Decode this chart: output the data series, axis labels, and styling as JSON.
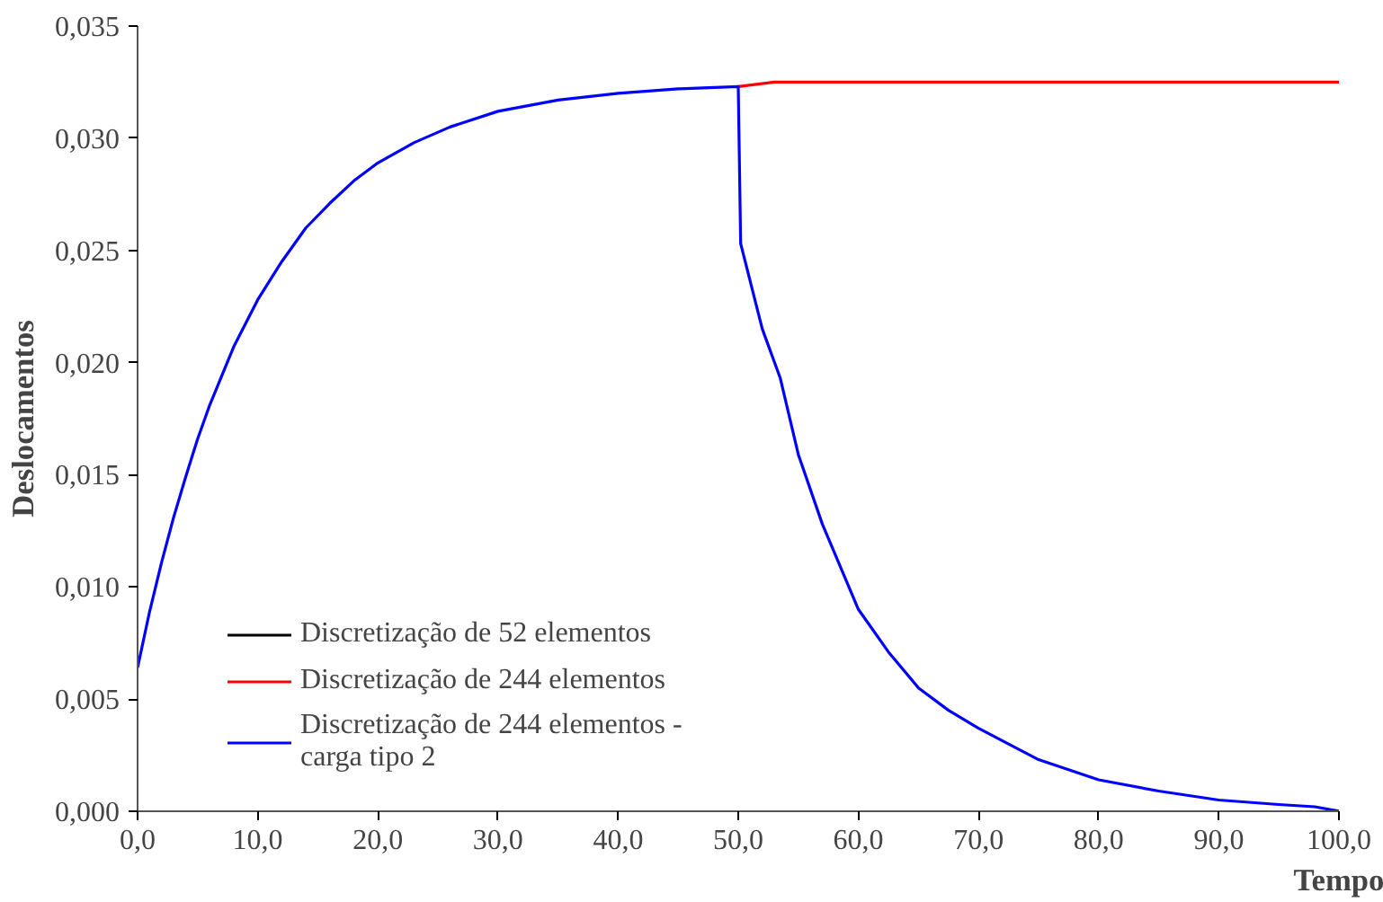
{
  "chart_data": {
    "type": "line",
    "xlabel": "Tempo",
    "ylabel": "Deslocamentos",
    "xlim": [
      0,
      100
    ],
    "ylim": [
      0,
      0.035
    ],
    "xticks": [
      {
        "value": 0,
        "label": "0,0"
      },
      {
        "value": 10,
        "label": "10,0"
      },
      {
        "value": 20,
        "label": "20,0"
      },
      {
        "value": 30,
        "label": "30,0"
      },
      {
        "value": 40,
        "label": "40,0"
      },
      {
        "value": 50,
        "label": "50,0"
      },
      {
        "value": 60,
        "label": "60,0"
      },
      {
        "value": 70,
        "label": "70,0"
      },
      {
        "value": 80,
        "label": "80,0"
      },
      {
        "value": 90,
        "label": "90,0"
      },
      {
        "value": 100,
        "label": "100,0"
      }
    ],
    "yticks": [
      {
        "value": 0,
        "label": "0,000"
      },
      {
        "value": 0.005,
        "label": "0,005"
      },
      {
        "value": 0.01,
        "label": "0,010"
      },
      {
        "value": 0.015,
        "label": "0,015"
      },
      {
        "value": 0.02,
        "label": "0,020"
      },
      {
        "value": 0.025,
        "label": "0,025"
      },
      {
        "value": 0.03,
        "label": "0,030"
      },
      {
        "value": 0.035,
        "label": "0,035"
      }
    ],
    "grid": false,
    "legend": "bottom left",
    "marker": "none",
    "line_style": "solid",
    "series": [
      {
        "name": "Discretização de 52 elementos",
        "color": "#000000"
      },
      {
        "name": "Discretização de 244 elementos",
        "color": "#ff0000",
        "x": [
          50,
          53,
          100
        ],
        "values": [
          0.0323,
          0.0325,
          0.0325
        ]
      },
      {
        "name": "Discretização de 244 elementos -\ncarga tipo 2",
        "color": "#0000ff",
        "x": [
          0,
          1,
          2,
          3,
          4,
          5,
          6,
          8,
          10,
          12,
          14,
          16,
          18,
          20,
          23,
          26,
          30,
          35,
          40,
          45,
          50,
          50.2,
          52,
          53.5,
          55,
          57,
          60,
          62.5,
          65,
          67.5,
          70,
          75,
          80,
          85,
          90,
          95,
          98,
          100
        ],
        "values": [
          0.0064,
          0.0089,
          0.0111,
          0.0131,
          0.0149,
          0.0166,
          0.0181,
          0.0207,
          0.0228,
          0.0245,
          0.026,
          0.0271,
          0.0281,
          0.0289,
          0.0298,
          0.0305,
          0.0312,
          0.0317,
          0.032,
          0.0322,
          0.0323,
          0.0253,
          0.0215,
          0.0193,
          0.0159,
          0.0128,
          0.009,
          0.0071,
          0.0055,
          0.0045,
          0.0037,
          0.0023,
          0.0014,
          0.0009,
          0.0005,
          0.0003,
          0.0002,
          0.0
        ]
      }
    ]
  }
}
